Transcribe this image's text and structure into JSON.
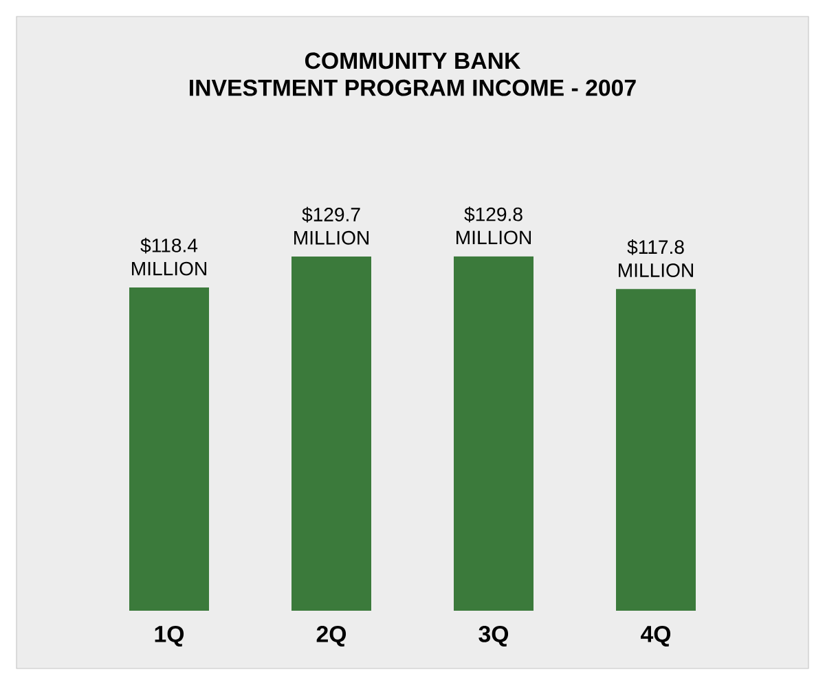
{
  "chart_data": {
    "type": "bar",
    "title": "COMMUNITY BANK\nINVESTMENT PROGRAM INCOME - 2007",
    "categories": [
      "1Q",
      "2Q",
      "3Q",
      "4Q"
    ],
    "values": [
      118.4,
      129.7,
      129.8,
      117.8
    ],
    "value_labels": [
      "$118.4 MILLION",
      "$129.7 MILLION",
      "$129.8 MILLION",
      "$117.8 MILLION"
    ],
    "color": "#3b7a3b"
  }
}
